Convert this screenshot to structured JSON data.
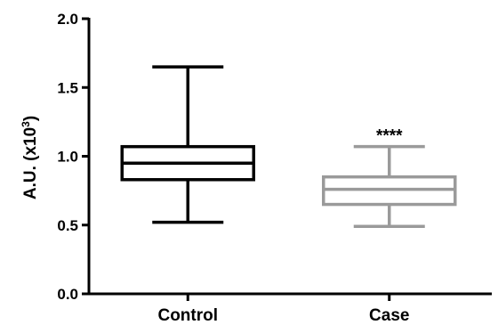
{
  "chart_data": {
    "type": "box",
    "title": "",
    "xlabel": "",
    "ylabel": {
      "main": "A.U. (x10",
      "superscript": "3",
      "close": ")"
    },
    "ylim": [
      0.0,
      2.0
    ],
    "yticks": [
      "0.0",
      "0.5",
      "1.0",
      "1.5",
      "2.0"
    ],
    "grid": false,
    "legend": "none",
    "categories": [
      "Control",
      "Case"
    ],
    "series": [
      {
        "min": 0.52,
        "q1": 0.83,
        "median": 0.95,
        "q3": 1.07,
        "max": 1.65,
        "color": "#000000"
      },
      {
        "min": 0.49,
        "q1": 0.65,
        "median": 0.76,
        "q3": 0.85,
        "max": 1.07,
        "color": "#9a9a9a",
        "annotation": "****"
      }
    ]
  }
}
